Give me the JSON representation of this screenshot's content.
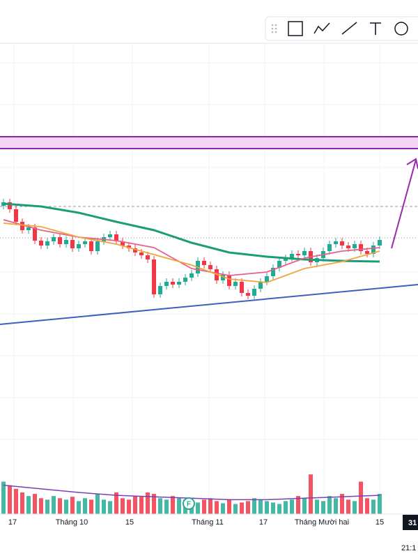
{
  "chart_data": {
    "type": "candlestick",
    "open": [
      205,
      210,
      200,
      182,
      170,
      174,
      155,
      148,
      154,
      160,
      150,
      156,
      144,
      150,
      154,
      140,
      154,
      160,
      164,
      154,
      148,
      144,
      138,
      134,
      128,
      78,
      90,
      96,
      92,
      96,
      102,
      108,
      126,
      120,
      114,
      98,
      106,
      90,
      96,
      80,
      76,
      86,
      96,
      104,
      116,
      126,
      130,
      136,
      134,
      140,
      124,
      130,
      140,
      150,
      154,
      148,
      144,
      150,
      140,
      136,
      148
    ],
    "high": [
      215,
      215,
      205,
      187,
      179,
      179,
      160,
      159,
      165,
      165,
      161,
      161,
      155,
      159,
      159,
      159,
      165,
      169,
      169,
      159,
      153,
      149,
      143,
      139,
      133,
      95,
      101,
      101,
      101,
      107,
      113,
      131,
      131,
      125,
      119,
      111,
      111,
      101,
      101,
      85,
      91,
      101,
      109,
      121,
      131,
      135,
      141,
      141,
      145,
      145,
      135,
      145,
      155,
      159,
      159,
      153,
      155,
      155,
      145,
      153,
      161
    ],
    "low": [
      200,
      195,
      177,
      165,
      165,
      150,
      143,
      143,
      149,
      145,
      145,
      139,
      139,
      145,
      135,
      135,
      149,
      155,
      149,
      143,
      139,
      133,
      129,
      123,
      73,
      73,
      85,
      87,
      87,
      91,
      97,
      103,
      115,
      109,
      93,
      93,
      85,
      85,
      75,
      71,
      71,
      81,
      91,
      99,
      111,
      121,
      125,
      129,
      129,
      119,
      119,
      125,
      135,
      145,
      143,
      139,
      139,
      135,
      131,
      131,
      143
    ],
    "close": [
      210,
      200,
      182,
      170,
      174,
      155,
      148,
      154,
      160,
      150,
      156,
      144,
      150,
      154,
      140,
      154,
      160,
      164,
      154,
      148,
      144,
      138,
      134,
      128,
      78,
      90,
      96,
      92,
      96,
      102,
      108,
      126,
      120,
      114,
      98,
      106,
      90,
      96,
      80,
      76,
      86,
      96,
      104,
      116,
      126,
      130,
      136,
      134,
      140,
      124,
      130,
      140,
      150,
      154,
      148,
      144,
      150,
      140,
      136,
      148,
      156
    ],
    "up_color": "#22ab94",
    "down_color": "#f23645",
    "ylim": [
      30,
      440
    ],
    "series": [
      {
        "color": "#1b9e77",
        "x": [
          0,
          6,
          12,
          18,
          24,
          30,
          36,
          42,
          48,
          54,
          60
        ],
        "values": [
          208,
          204,
          195,
          182,
          170,
          152,
          138,
          132,
          128,
          126,
          125
        ]
      },
      {
        "color": "#e8608a",
        "x": [
          0,
          6,
          12,
          18,
          24,
          30,
          36,
          42,
          48,
          54,
          60
        ],
        "values": [
          185,
          170,
          160,
          155,
          145,
          115,
          105,
          110,
          130,
          140,
          145
        ]
      },
      {
        "color": "#f2a33a",
        "x": [
          0,
          6,
          12,
          18,
          24,
          30,
          36,
          42,
          48,
          54,
          60
        ],
        "values": [
          180,
          175,
          160,
          150,
          135,
          120,
          100,
          95,
          115,
          125,
          140
        ]
      }
    ],
    "volume": {
      "values": [
        45,
        40,
        35,
        30,
        25,
        28,
        22,
        20,
        25,
        22,
        20,
        24,
        18,
        22,
        20,
        28,
        20,
        18,
        30,
        22,
        20,
        25,
        24,
        30,
        28,
        22,
        20,
        25,
        22,
        20,
        18,
        16,
        20,
        22,
        18,
        15,
        20,
        14,
        16,
        18,
        22,
        20,
        18,
        16,
        14,
        18,
        20,
        25,
        22,
        55,
        20,
        18,
        25,
        22,
        28,
        20,
        18,
        45,
        22,
        20,
        28
      ],
      "ylim": [
        0,
        60
      ],
      "ma": {
        "color": "#7b3fb5",
        "x": [
          0,
          6,
          12,
          18,
          24,
          30,
          36,
          42,
          48,
          54,
          60
        ],
        "values": [
          40,
          35,
          30,
          26,
          24,
          22,
          20,
          20,
          22,
          24,
          26
        ]
      }
    },
    "x_labels": [
      "17",
      "Tháng 10",
      "15",
      "Tháng 11",
      "17",
      "Tháng Mười hai",
      "15"
    ],
    "price_tag": "31",
    "clock": "21:1",
    "event_marker": "F"
  }
}
